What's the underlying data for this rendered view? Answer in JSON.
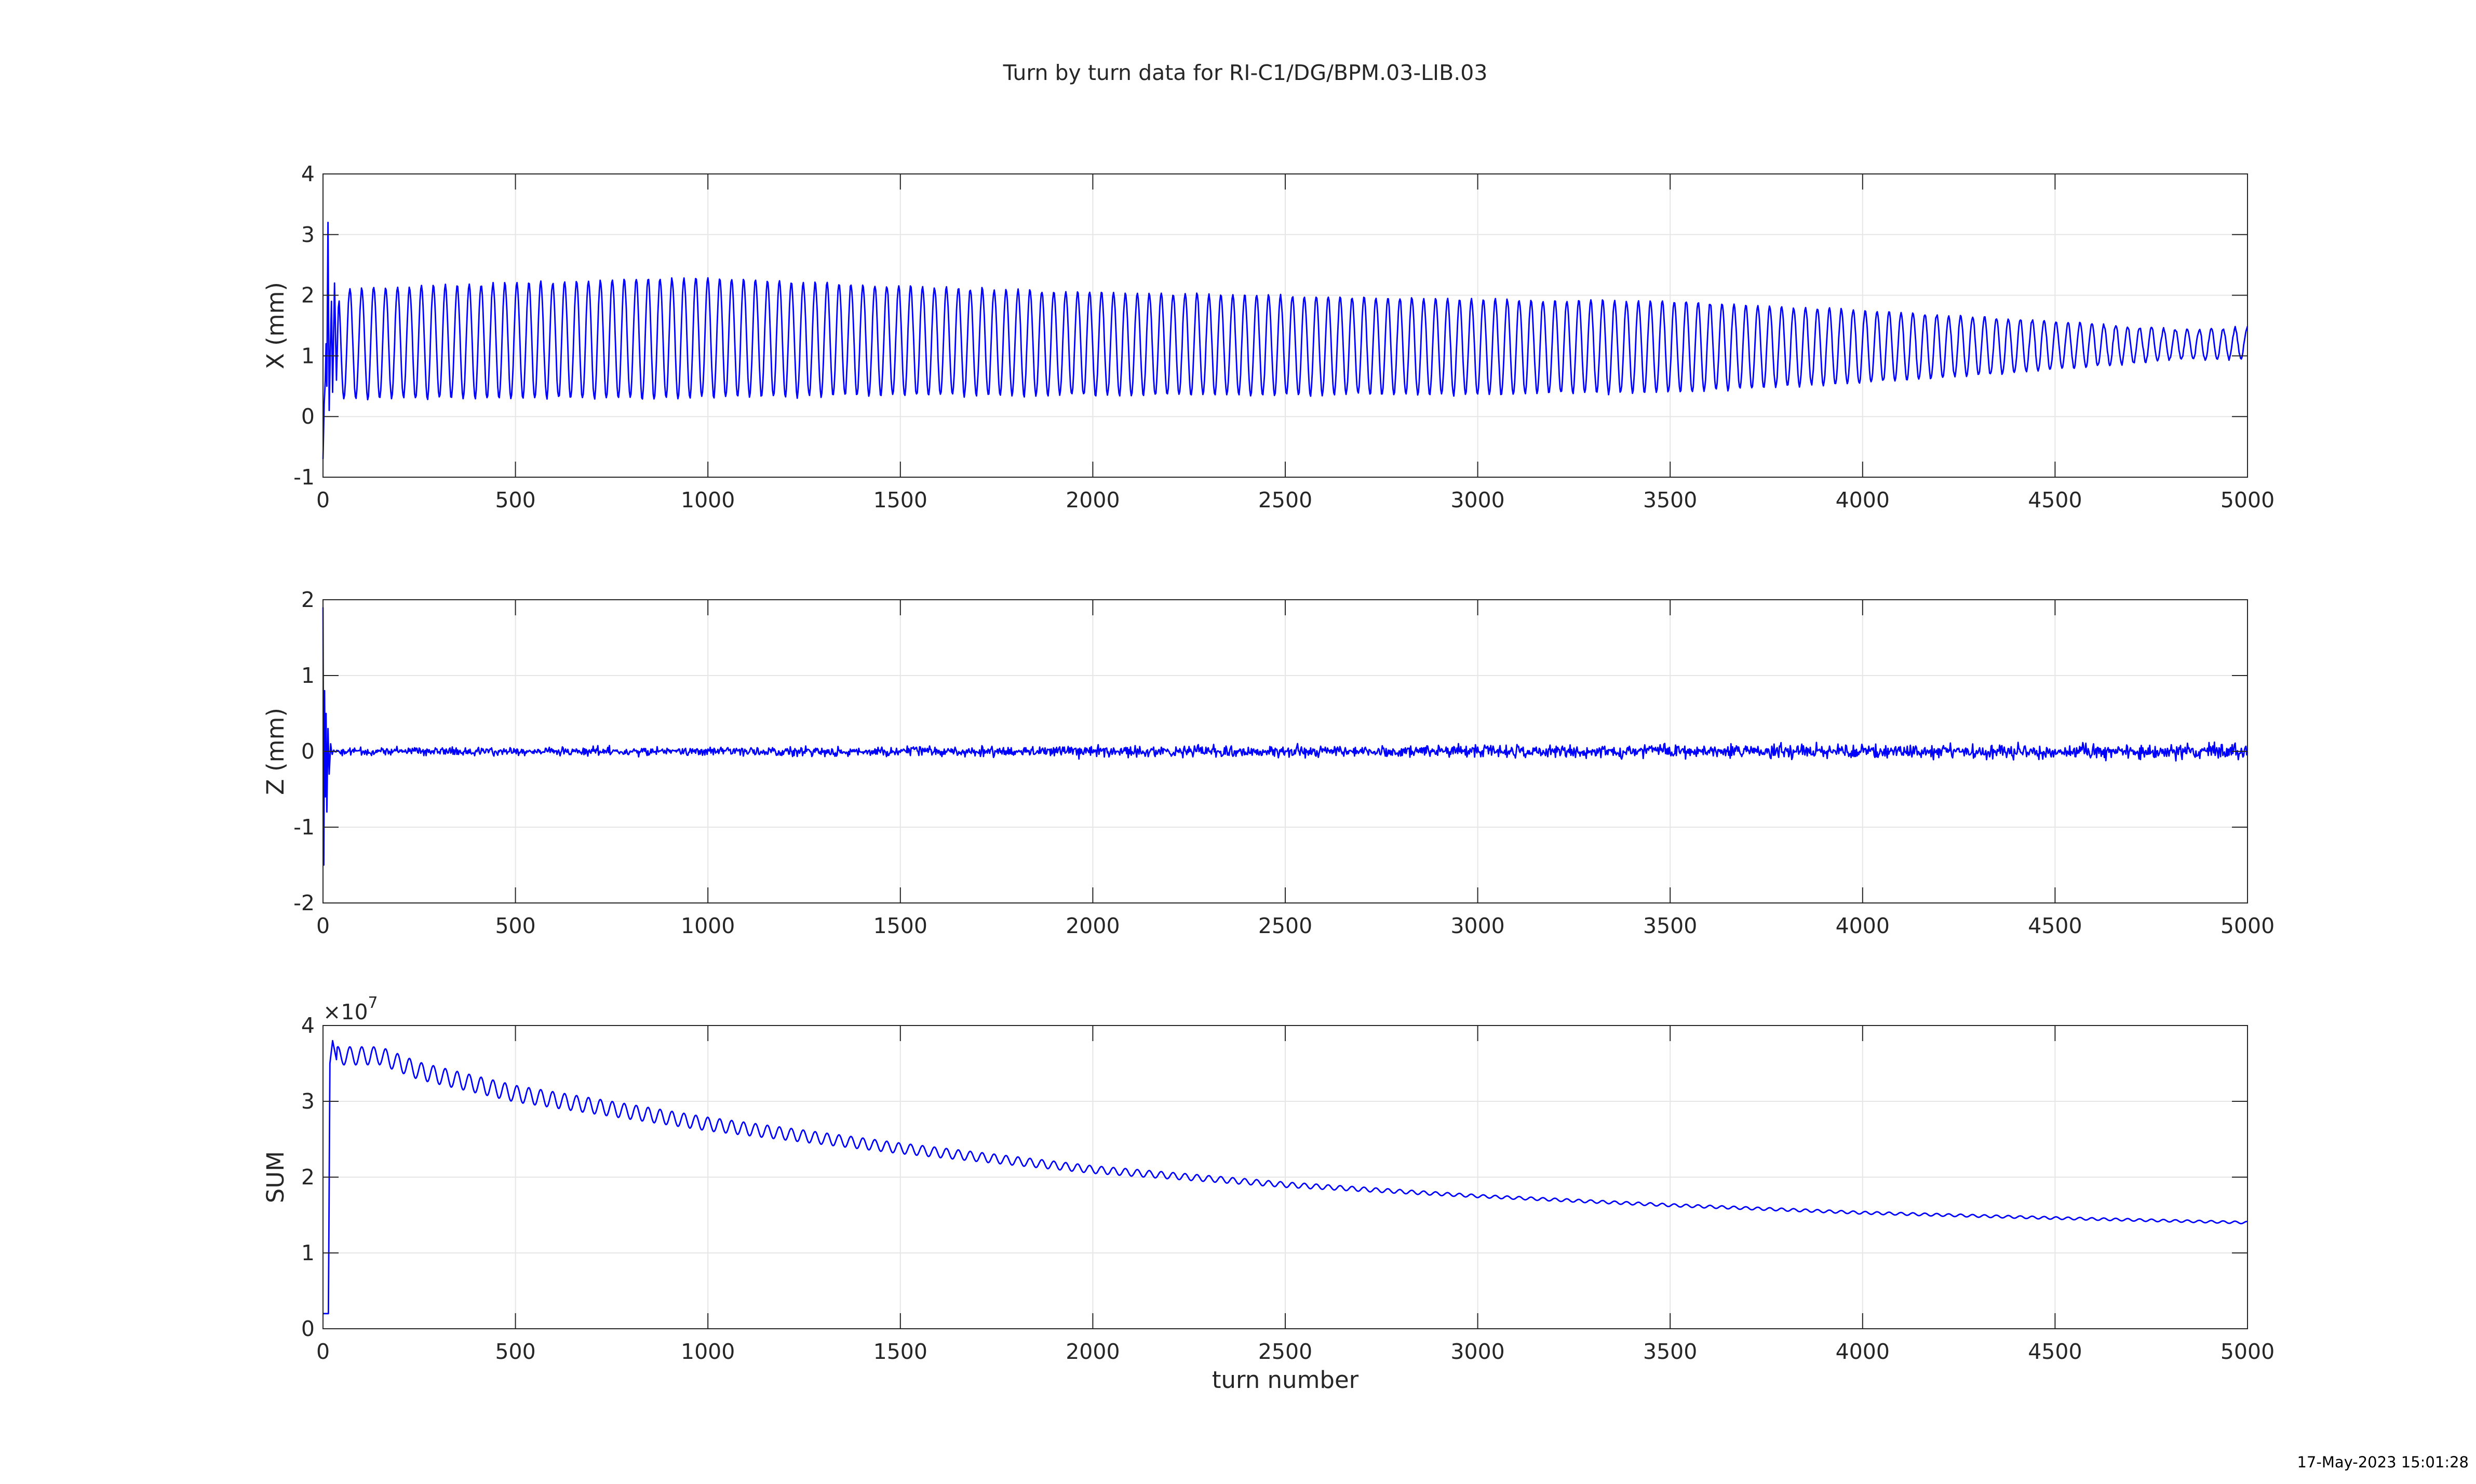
{
  "title": "Turn by turn data for RI-C1/DG/BPM.03-LIB.03",
  "timestamp": "17-May-2023 15:01:28",
  "line_color": "#0000ff",
  "chart_data": [
    {
      "type": "line",
      "ylabel": "X (mm)",
      "xlabel": "",
      "xlim": [
        0,
        5000
      ],
      "ylim": [
        -1,
        4
      ],
      "xticks": [
        0,
        500,
        1000,
        1500,
        2000,
        2500,
        3000,
        3500,
        4000,
        4500,
        5000
      ],
      "yticks": [
        -1,
        0,
        1,
        2,
        3,
        4
      ],
      "grid": true,
      "series": [
        {
          "signal": "betatron_oscillation",
          "transient": [
            [
              0,
              -0.7
            ],
            [
              3,
              0.2
            ],
            [
              6,
              0.6
            ],
            [
              8,
              1.2
            ],
            [
              10,
              0.5
            ],
            [
              13,
              3.2
            ],
            [
              16,
              0.1
            ],
            [
              19,
              1.1
            ],
            [
              22,
              1.9
            ],
            [
              25,
              0.4
            ],
            [
              30,
              2.2
            ],
            [
              35,
              0.6
            ],
            [
              40,
              1.8
            ]
          ],
          "period_turns": 31,
          "center": [
            [
              0,
              1.2
            ],
            [
              1000,
              1.3
            ],
            [
              2000,
              1.2
            ],
            [
              3000,
              1.15
            ],
            [
              4000,
              1.15
            ],
            [
              5000,
              1.2
            ]
          ],
          "amplitude": [
            [
              0,
              0.9
            ],
            [
              500,
              0.95
            ],
            [
              900,
              1.0
            ],
            [
              1500,
              0.9
            ],
            [
              2000,
              0.85
            ],
            [
              3000,
              0.78
            ],
            [
              3500,
              0.75
            ],
            [
              4000,
              0.6
            ],
            [
              4500,
              0.4
            ],
            [
              4800,
              0.25
            ],
            [
              5000,
              0.25
            ]
          ],
          "noise": 0.03
        }
      ]
    },
    {
      "type": "line",
      "ylabel": "Z (mm)",
      "xlabel": "",
      "xlim": [
        0,
        5000
      ],
      "ylim": [
        -2,
        2
      ],
      "xticks": [
        0,
        500,
        1000,
        1500,
        2000,
        2500,
        3000,
        3500,
        4000,
        4500,
        5000
      ],
      "yticks": [
        -2,
        -1,
        0,
        1,
        2
      ],
      "grid": true,
      "series": [
        {
          "signal": "noise_around_zero",
          "transient": [
            [
              0,
              1.9
            ],
            [
              2,
              -1.5
            ],
            [
              4,
              0.8
            ],
            [
              6,
              -0.6
            ],
            [
              8,
              0.5
            ],
            [
              10,
              -0.8
            ],
            [
              13,
              0.3
            ],
            [
              16,
              -0.3
            ],
            [
              20,
              0.1
            ]
          ],
          "center": [
            [
              0,
              0.0
            ],
            [
              5000,
              0.0
            ]
          ],
          "noise_envelope": [
            [
              0,
              0.05
            ],
            [
              1000,
              0.06
            ],
            [
              2000,
              0.07
            ],
            [
              3000,
              0.08
            ],
            [
              4000,
              0.09
            ],
            [
              5000,
              0.1
            ]
          ]
        }
      ]
    },
    {
      "type": "line",
      "ylabel": "SUM",
      "xlabel": "turn number",
      "xlim": [
        0,
        5000
      ],
      "ylim": [
        0,
        4
      ],
      "y_multiplier": "×10",
      "y_multiplier_exp": "7",
      "xticks": [
        0,
        500,
        1000,
        1500,
        2000,
        2500,
        3000,
        3500,
        4000,
        4500,
        5000
      ],
      "yticks": [
        0,
        1,
        2,
        3,
        4
      ],
      "grid": true,
      "series": [
        {
          "signal": "decaying_sum",
          "transient": [
            [
              0,
              0.2
            ],
            [
              8,
              0.2
            ],
            [
              14,
              0.2
            ],
            [
              18,
              3.5
            ],
            [
              25,
              3.8
            ],
            [
              35,
              3.55
            ]
          ],
          "period_turns": 31,
          "center": [
            [
              40,
              3.6
            ],
            [
              150,
              3.6
            ],
            [
              250,
              3.4
            ],
            [
              500,
              3.1
            ],
            [
              1000,
              2.7
            ],
            [
              1500,
              2.38
            ],
            [
              2000,
              2.1
            ],
            [
              2500,
              1.9
            ],
            [
              3000,
              1.75
            ],
            [
              3500,
              1.63
            ],
            [
              4000,
              1.53
            ],
            [
              4500,
              1.46
            ],
            [
              5000,
              1.4
            ]
          ],
          "amplitude": [
            [
              40,
              0.12
            ],
            [
              500,
              0.11
            ],
            [
              1000,
              0.09
            ],
            [
              2000,
              0.05
            ],
            [
              3000,
              0.02
            ],
            [
              4000,
              0.018
            ],
            [
              5000,
              0.015
            ]
          ]
        }
      ]
    }
  ]
}
